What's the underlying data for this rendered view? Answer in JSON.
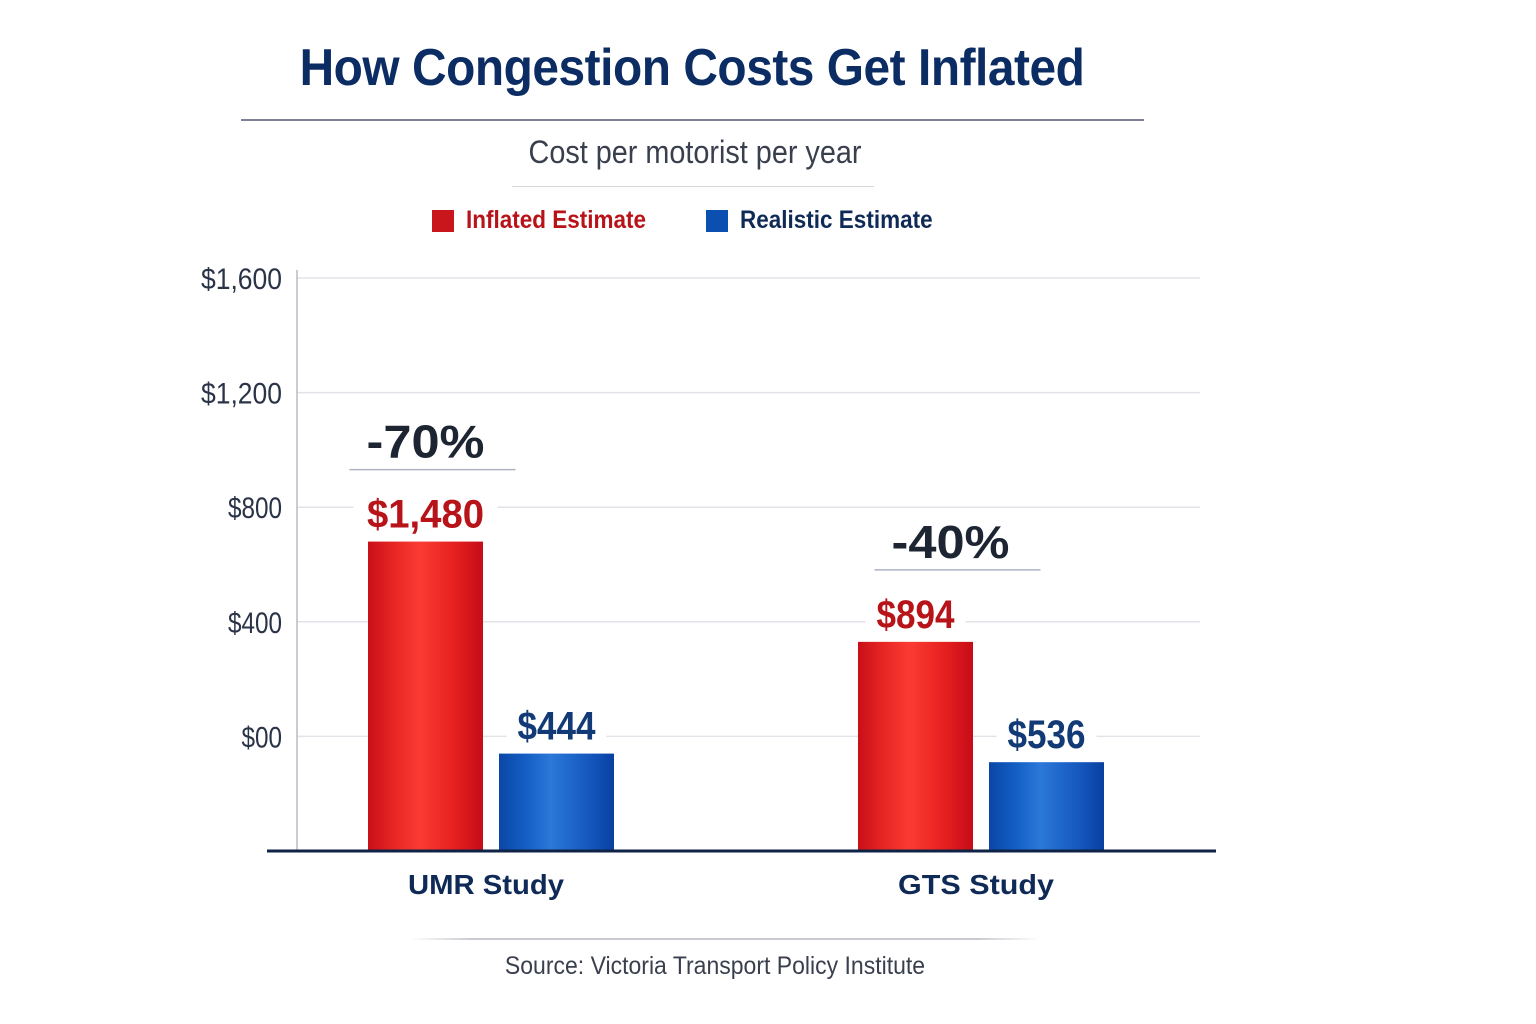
{
  "title": "How Congestion Costs Get Inflated",
  "subtitle": "Cost per motorist per year",
  "source": "Source: Victoria Transport Policy Institute",
  "colors": {
    "title": "#0c2c64",
    "inflated": "#e3201f",
    "inflated_label": "#b71318",
    "realistic": "#1557bf",
    "realistic_label": "#123a76",
    "percent_label": "#1d2533",
    "axis_text": "#2a3347"
  },
  "legend": [
    {
      "label": "Inflated Estimate",
      "color": "#c8161c",
      "text_color": "#b71318"
    },
    {
      "label": "Realistic Estimate",
      "color": "#0b4fb0",
      "text_color": "#0f2a57"
    }
  ],
  "chart_data": {
    "type": "bar",
    "title": "How Congestion Costs Get Inflated",
    "subtitle": "Cost per motorist per year",
    "xlabel": "",
    "ylabel": "",
    "categories": [
      "UMR Study",
      "GTS Study"
    ],
    "y_ticks": [
      {
        "label": "$00",
        "value": 0
      },
      {
        "label": "$400",
        "value": 400
      },
      {
        "label": "$800",
        "value": 800
      },
      {
        "label": "$1,200",
        "value": 1200
      },
      {
        "label": "$1,600",
        "value": 1600
      }
    ],
    "ylim": [
      -400,
      1600
    ],
    "grid": true,
    "legend_position": "top-center",
    "series": [
      {
        "name": "Inflated Estimate",
        "labels": [
          "$1,480",
          "$894"
        ],
        "values": [
          1480,
          894
        ],
        "visual_values": [
          680,
          330
        ]
      },
      {
        "name": "Realistic Estimate",
        "labels": [
          "$444",
          "$536"
        ],
        "values": [
          444,
          536
        ],
        "visual_values": [
          -60,
          -90
        ]
      }
    ],
    "annotations": [
      {
        "category": "UMR Study",
        "text": "-70%"
      },
      {
        "category": "GTS Study",
        "text": "-40%"
      }
    ],
    "source": "Source: Victoria Transport Policy Institute"
  }
}
